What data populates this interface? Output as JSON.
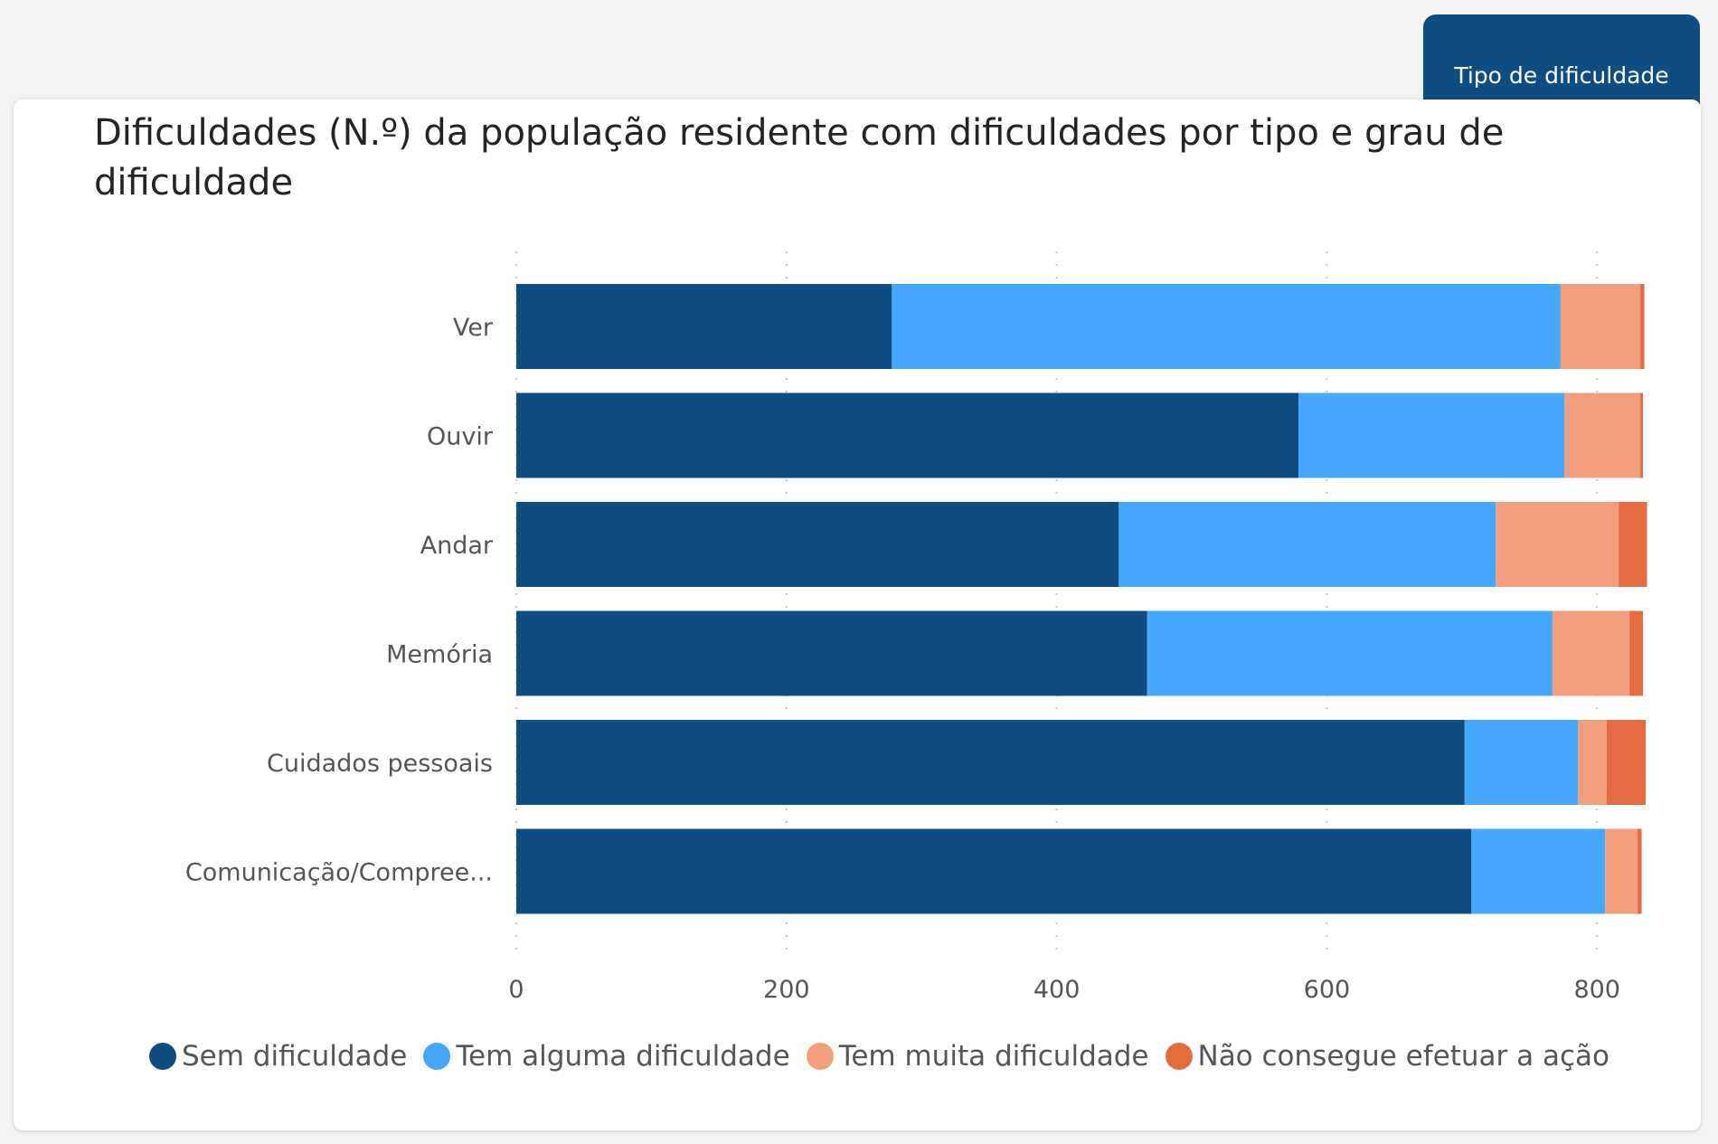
{
  "tab": {
    "label": "Tipo de dificuldade"
  },
  "chart_data": {
    "type": "bar",
    "orientation": "horizontal",
    "stacked": true,
    "title": "Dificuldades (N.º) da população residente com dificuldades por tipo e grau de dificuldade",
    "categories": [
      "Ver",
      "Ouvir",
      "Andar",
      "Memória",
      "Cuidados pessoais",
      "Comunicação/Compree..."
    ],
    "series": [
      {
        "name": "Sem dificuldade",
        "color": "#0f4c81",
        "values": [
          278,
          579,
          446,
          467,
          702,
          707
        ]
      },
      {
        "name": "Tem alguma dificuldade",
        "color": "#45a8fc",
        "values": [
          495,
          197,
          279,
          300,
          84,
          99
        ]
      },
      {
        "name": "Tem muita dificuldade",
        "color": "#f09e7c",
        "values": [
          59,
          56,
          91,
          57,
          21,
          24
        ]
      },
      {
        "name": "Não consegue efetuar a ação",
        "color": "#e56b40",
        "values": [
          3,
          2,
          21,
          10,
          29,
          3
        ]
      }
    ],
    "xticks": [
      0,
      200,
      400,
      600,
      800
    ],
    "xlim": [
      0,
      840
    ],
    "xlabel": "",
    "ylabel": "",
    "grid": true,
    "legend_position": "bottom"
  }
}
